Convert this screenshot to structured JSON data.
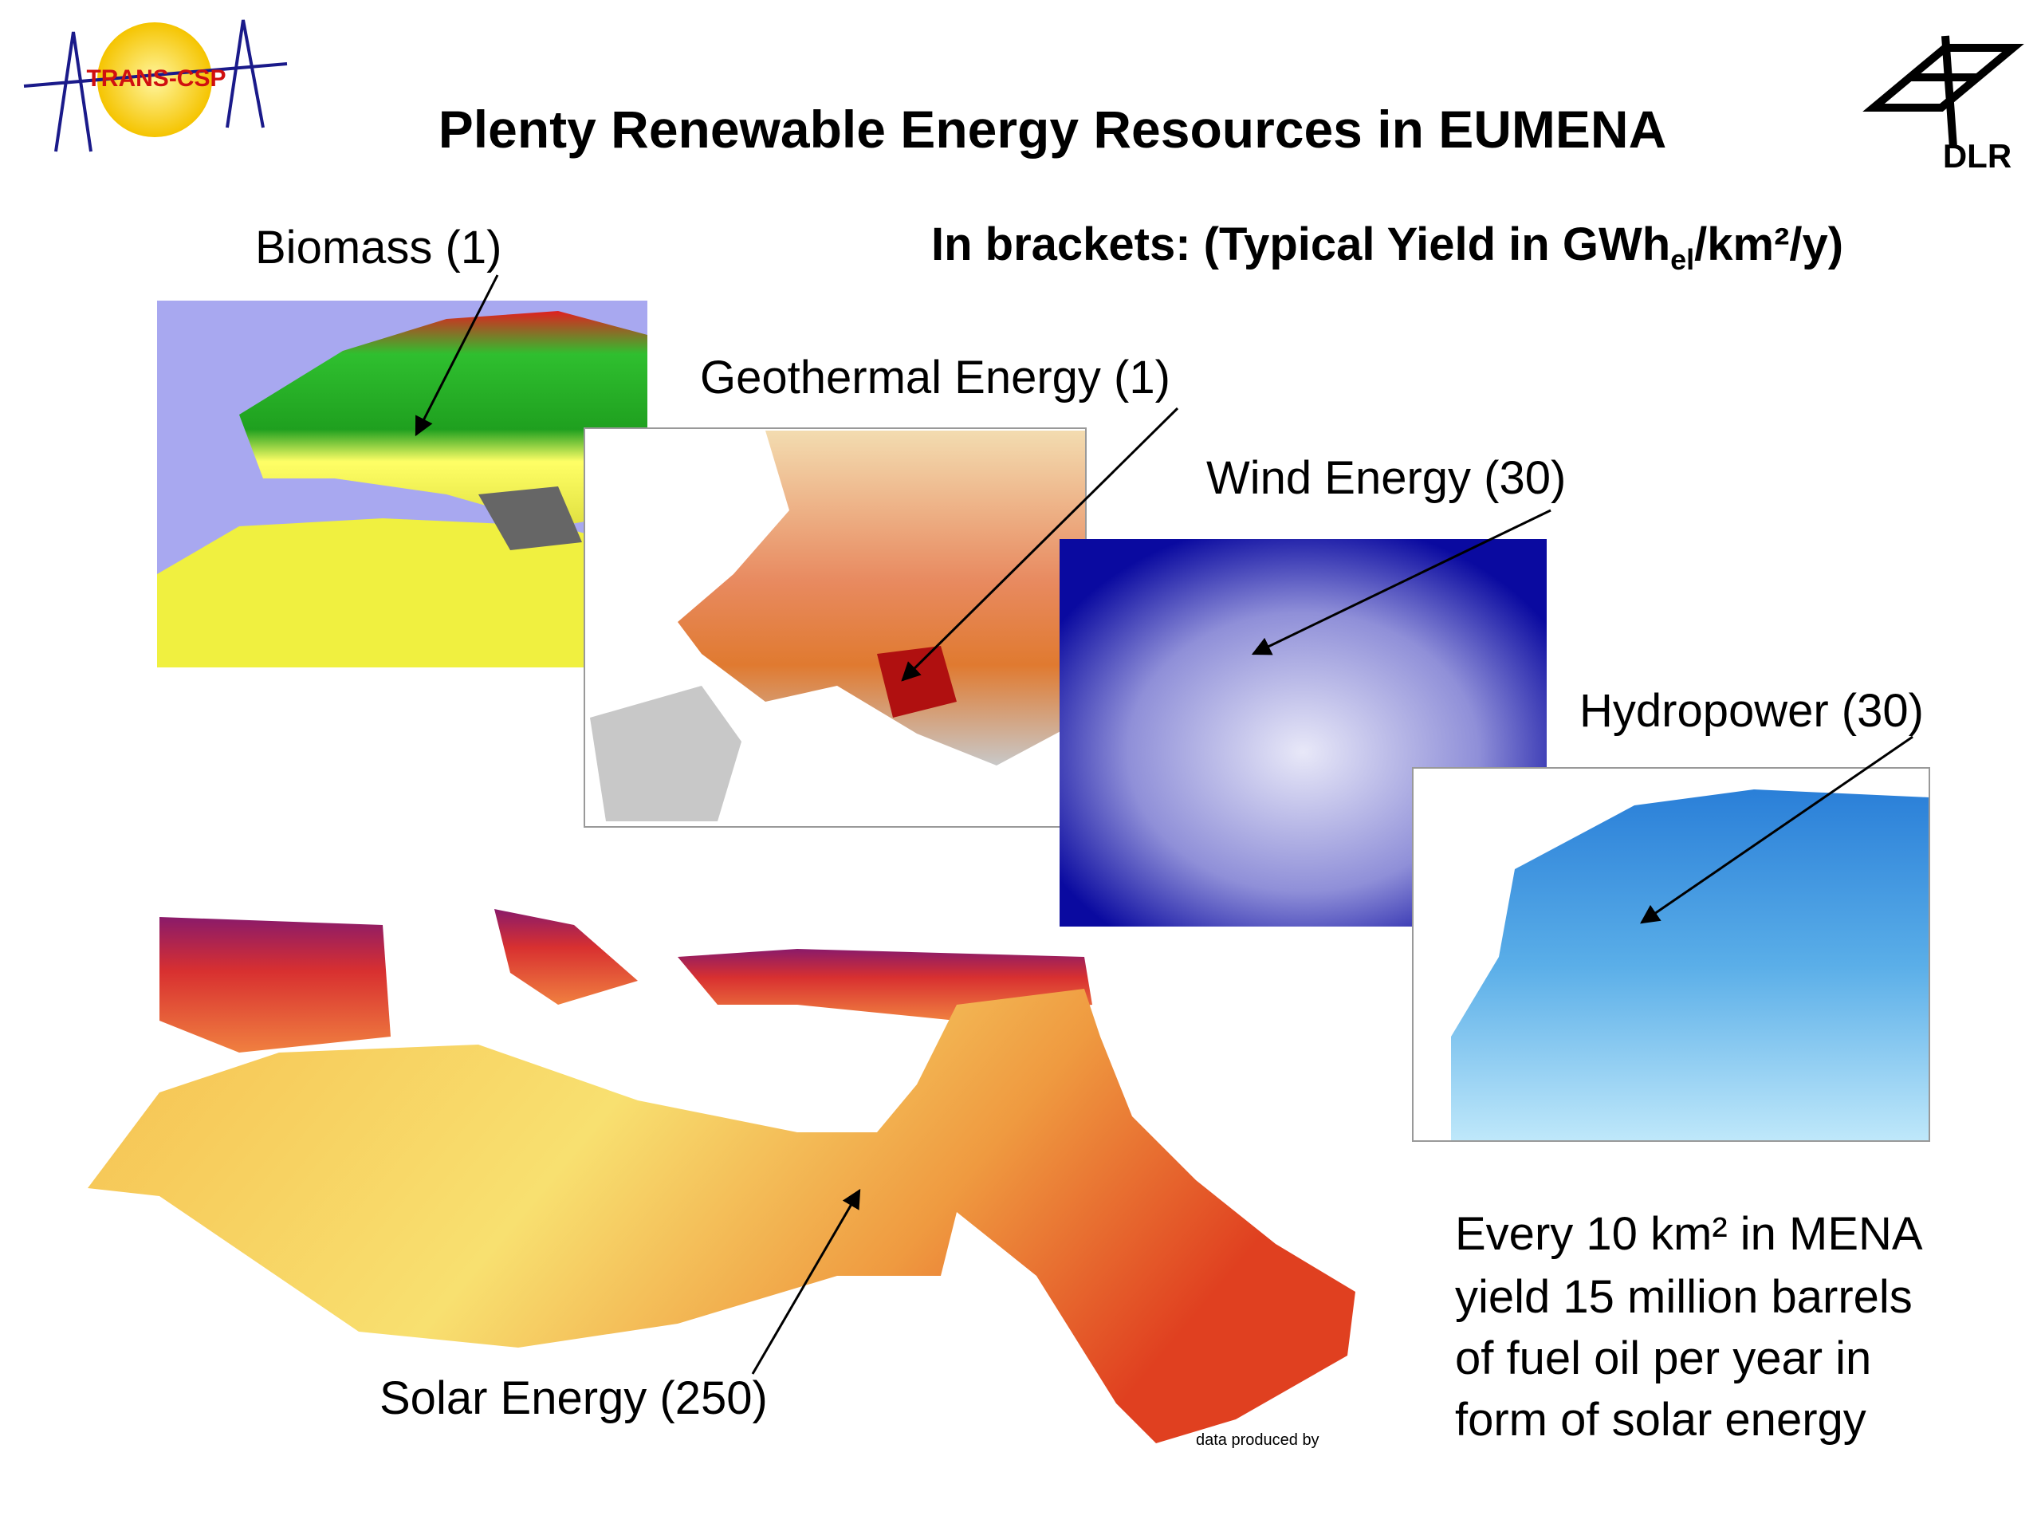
{
  "header": {
    "logo_left": "TRANS-CSP",
    "title": "Plenty Renewable Energy Resources in EUMENA",
    "logo_right": "DLR"
  },
  "legend_note": {
    "prefix": "In brackets: (Typical Yield in GWh",
    "subscript": "el",
    "suffix": "/km²/y)"
  },
  "maps": [
    {
      "label": "Biomass (1)"
    },
    {
      "label": "Geothermal Energy (1)"
    },
    {
      "label": "Wind Energy (30)"
    },
    {
      "label": "Hydropower (30)"
    },
    {
      "label": "Solar Energy (250)",
      "credit": "data produced by"
    }
  ],
  "note": [
    "Every 10 km² in MENA",
    "yield 15 million barrels",
    "of fuel oil per year in",
    "form of solar energy"
  ]
}
